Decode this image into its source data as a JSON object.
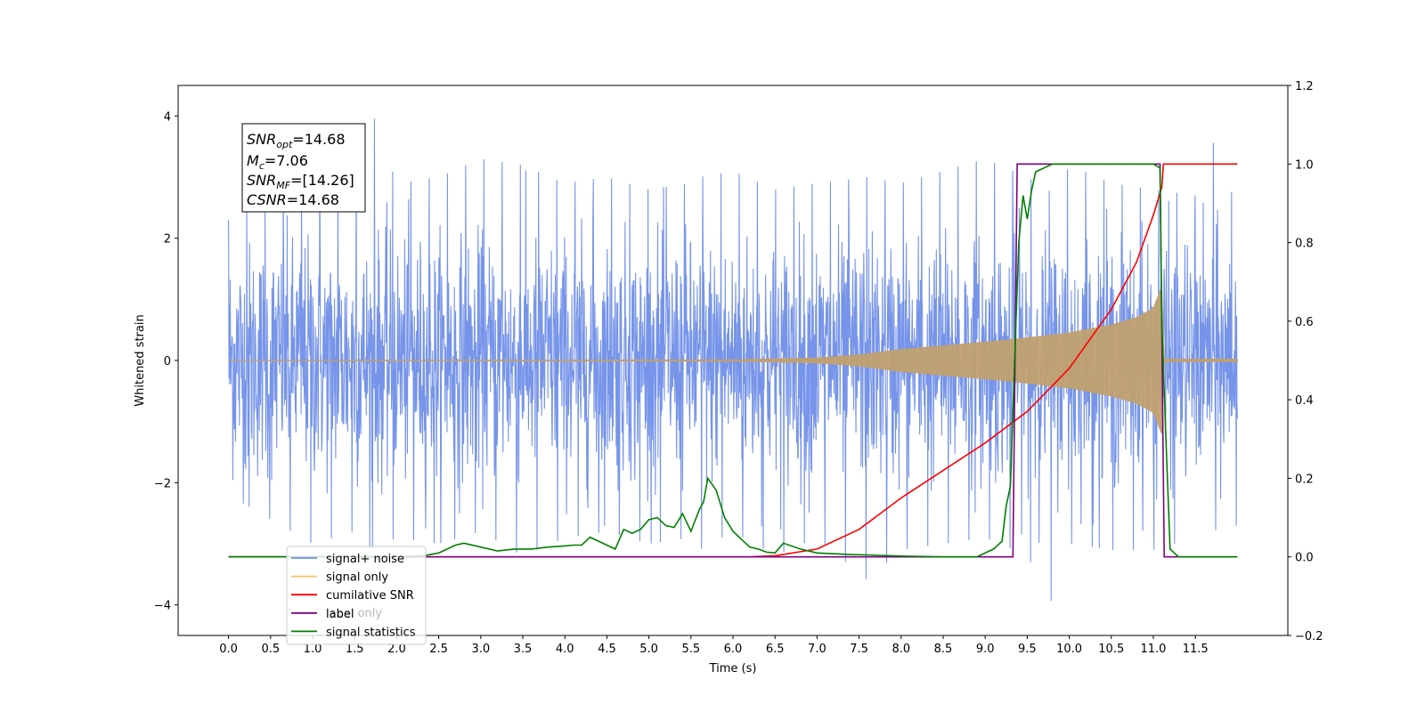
{
  "chart_data": {
    "type": "line",
    "title": "",
    "xlabel": "Time (s)",
    "ylabel": "Whitened strain",
    "y2label": "",
    "xlim": [
      -0.6,
      12.6
    ],
    "ylim": [
      -4.5,
      4.5
    ],
    "y2lim": [
      -0.2,
      1.2
    ],
    "x_ticks": [
      "0.0",
      "0.5",
      "1.0",
      "1.5",
      "2.0",
      "2.5",
      "3.0",
      "3.5",
      "4.0",
      "4.5",
      "5.0",
      "5.5",
      "6.0",
      "6.5",
      "7.0",
      "7.5",
      "8.0",
      "8.5",
      "9.0",
      "9.5",
      "10.0",
      "10.5",
      "11.0",
      "11.5"
    ],
    "y_ticks": [
      "−4",
      "−2",
      "0",
      "2",
      "4"
    ],
    "y2_ticks": [
      "−0.2",
      "0.0",
      "0.2",
      "0.4",
      "0.6",
      "0.8",
      "1.0",
      "1.2"
    ],
    "grid": false,
    "legend_position": "lower-left",
    "annotation": {
      "lines": [
        {
          "symbol": "SNR",
          "sub": "opt",
          "text": "=14.68"
        },
        {
          "symbol": "M",
          "sub": "c",
          "text": "=7.06"
        },
        {
          "symbol": "SNR",
          "sub": "MF",
          "text": "=[14.26]"
        },
        {
          "symbol": "CSNR",
          "sub": "",
          "text": "=14.68"
        }
      ]
    },
    "noise_envelope": {
      "x": [
        0.0,
        0.5,
        1.0,
        1.5,
        1.7,
        2.0,
        2.5,
        3.0,
        3.5,
        4.0,
        4.5,
        5.0,
        5.5,
        5.6,
        6.0,
        6.5,
        7.0,
        7.6,
        8.0,
        8.5,
        9.0,
        9.5,
        9.85,
        10.0,
        10.5,
        11.0,
        11.5,
        11.65,
        12.0
      ],
      "upper": [
        2.3,
        2.6,
        3.0,
        3.2,
        4.1,
        2.9,
        3.0,
        3.3,
        3.2,
        2.9,
        3.0,
        2.8,
        2.9,
        3.0,
        3.1,
        2.8,
        2.9,
        3.0,
        2.9,
        3.1,
        3.3,
        3.0,
        2.7,
        3.2,
        2.9,
        2.8,
        2.7,
        3.8,
        2.5
      ],
      "lower": [
        -2.2,
        -2.6,
        -3.0,
        -2.8,
        -3.1,
        -2.9,
        -3.0,
        -2.8,
        -3.2,
        -2.9,
        -2.8,
        -3.0,
        -2.9,
        -3.1,
        -2.8,
        -3.2,
        -2.9,
        -3.6,
        -3.1,
        -3.0,
        -2.9,
        -3.2,
        -4.1,
        -3.0,
        -3.1,
        -3.1,
        -2.9,
        -2.8,
        -2.7
      ]
    },
    "signal_envelope": {
      "x": [
        0.0,
        6.0,
        7.0,
        7.5,
        8.0,
        8.5,
        9.0,
        9.5,
        10.0,
        10.5,
        10.8,
        11.0,
        11.1,
        11.12,
        12.0
      ],
      "amplitude": [
        0.0,
        0.01,
        0.04,
        0.09,
        0.18,
        0.24,
        0.3,
        0.37,
        0.45,
        0.58,
        0.7,
        0.85,
        1.2,
        0.02,
        0.02
      ]
    },
    "series": [
      {
        "name": "cumilative SNR",
        "axis": "right",
        "color": "#ff0000",
        "x": [
          0.0,
          6.2,
          6.5,
          7.0,
          7.5,
          8.0,
          8.5,
          9.0,
          9.5,
          10.0,
          10.5,
          10.8,
          11.0,
          11.1,
          11.12,
          11.15,
          11.3,
          12.0
        ],
        "y": [
          0.0,
          0.0,
          0.003,
          0.02,
          0.07,
          0.15,
          0.22,
          0.29,
          0.37,
          0.48,
          0.63,
          0.75,
          0.87,
          0.94,
          1.0,
          1.0,
          1.0,
          1.0
        ]
      },
      {
        "name": "label",
        "axis": "right",
        "color": "#800080",
        "x": [
          0.0,
          9.33,
          9.38,
          11.08,
          11.13,
          12.0
        ],
        "y": [
          0.0,
          0.0,
          1.0,
          1.0,
          0.0,
          0.0
        ]
      },
      {
        "name": "signal statistics",
        "axis": "right",
        "color": "#008000",
        "x": [
          0.0,
          2.0,
          2.3,
          2.5,
          2.6,
          2.7,
          2.8,
          3.0,
          3.2,
          3.4,
          3.6,
          3.8,
          4.0,
          4.1,
          4.2,
          4.3,
          4.5,
          4.6,
          4.7,
          4.8,
          4.9,
          5.0,
          5.1,
          5.2,
          5.3,
          5.4,
          5.5,
          5.6,
          5.65,
          5.7,
          5.8,
          5.9,
          6.0,
          6.1,
          6.2,
          6.3,
          6.4,
          6.5,
          6.6,
          6.8,
          7.0,
          7.2,
          7.4,
          7.6,
          8.0,
          8.5,
          8.9,
          9.1,
          9.2,
          9.25,
          9.3,
          9.35,
          9.4,
          9.45,
          9.5,
          9.55,
          9.6,
          9.7,
          9.8,
          10.0,
          10.5,
          11.0,
          11.08,
          11.1,
          11.15,
          11.2,
          11.3,
          12.0
        ],
        "y": [
          0.0,
          0.0,
          0.002,
          0.01,
          0.02,
          0.03,
          0.035,
          0.025,
          0.015,
          0.02,
          0.02,
          0.025,
          0.028,
          0.03,
          0.03,
          0.05,
          0.03,
          0.02,
          0.07,
          0.06,
          0.07,
          0.095,
          0.1,
          0.08,
          0.075,
          0.11,
          0.065,
          0.12,
          0.14,
          0.2,
          0.17,
          0.1,
          0.065,
          0.045,
          0.025,
          0.02,
          0.012,
          0.01,
          0.035,
          0.02,
          0.01,
          0.008,
          0.006,
          0.005,
          0.002,
          0.0,
          0.0,
          0.02,
          0.04,
          0.13,
          0.18,
          0.5,
          0.8,
          0.92,
          0.86,
          0.93,
          0.98,
          0.99,
          1.0,
          1.0,
          1.0,
          1.0,
          0.99,
          0.6,
          0.3,
          0.02,
          0.0,
          0.0
        ]
      }
    ],
    "legend": [
      {
        "label": "signal+ noise",
        "color": "#6f8ee8"
      },
      {
        "label": "signal only",
        "color": "#ffc060"
      },
      {
        "label": "cumilative SNR",
        "color": "#ff0000"
      },
      {
        "label": "label",
        "color": "#800080"
      },
      {
        "label": "signal statistics",
        "color": "#008000"
      }
    ],
    "hidden_legend_text": "label only"
  }
}
